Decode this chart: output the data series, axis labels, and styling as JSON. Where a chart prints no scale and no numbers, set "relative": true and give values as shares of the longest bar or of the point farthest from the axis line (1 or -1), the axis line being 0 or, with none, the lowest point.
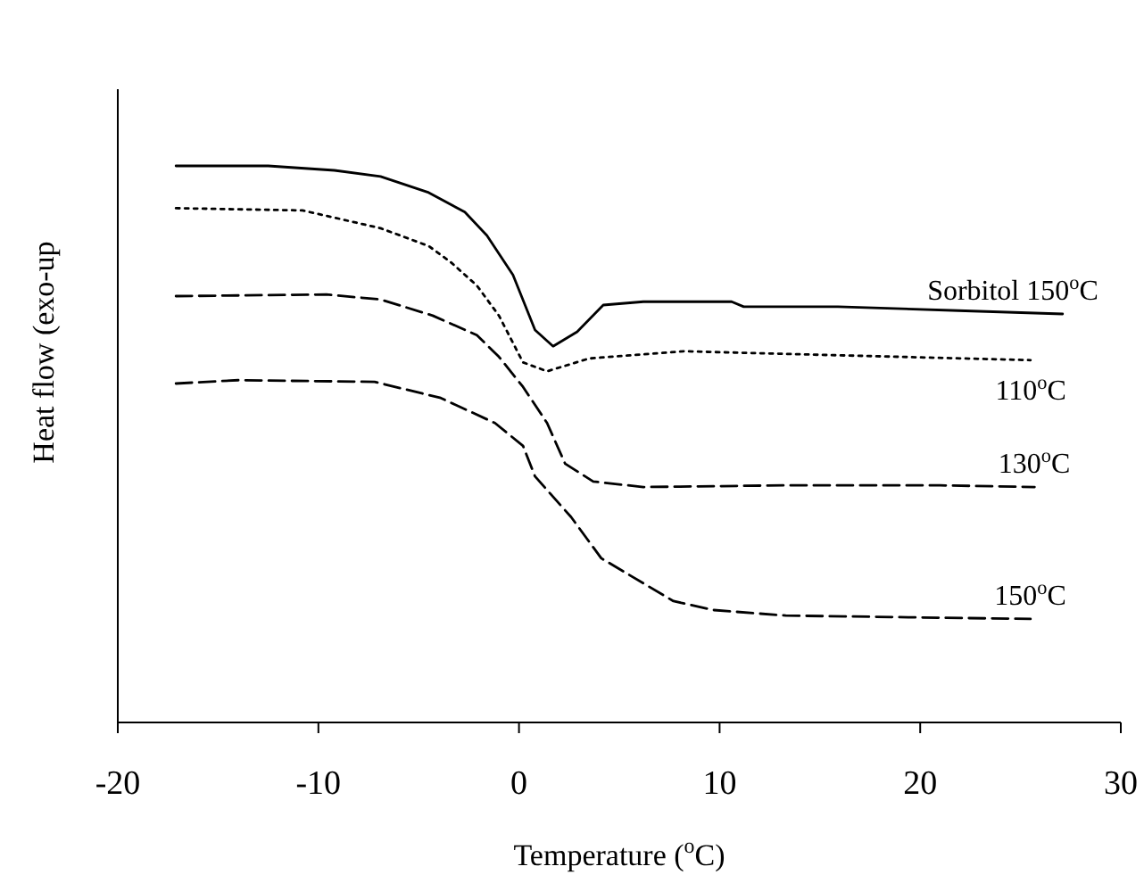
{
  "chart_data": {
    "type": "line",
    "relative": true,
    "xlabel": "Temperature ($^{o}$C)",
    "ylabel": "Heat flow (exo-up",
    "xlim": [
      -20,
      30
    ],
    "xticks": [
      -20,
      -10,
      0,
      10,
      20,
      30
    ],
    "series": [
      {
        "name": "Sorbitol 150$^{o}$C",
        "color": "#000000",
        "line_style": "solid",
        "x": [
          -17.1,
          -12.5,
          -9.2,
          -6.9,
          -4.5,
          -2.7,
          -1.6,
          -0.3,
          0.8,
          1.7,
          2.9,
          4.2,
          6.2,
          10.6,
          11.2,
          15.9,
          21.9,
          27.1
        ],
        "values": [
          1.0,
          1.0,
          0.992,
          0.981,
          0.952,
          0.917,
          0.875,
          0.804,
          0.705,
          0.676,
          0.702,
          0.75,
          0.756,
          0.756,
          0.747,
          0.747,
          0.74,
          0.734
        ]
      },
      {
        "name": "110$^{o}$C",
        "color": "#000000",
        "line_style": "dotted",
        "x": [
          -17.1,
          -10.8,
          -9.2,
          -6.9,
          -4.5,
          -3.4,
          -2.1,
          -1.0,
          0.2,
          1.4,
          3.5,
          8.2,
          15.6,
          25.5
        ],
        "values": [
          0.924,
          0.92,
          0.907,
          0.888,
          0.856,
          0.827,
          0.785,
          0.731,
          0.647,
          0.631,
          0.654,
          0.667,
          0.66,
          0.651
        ]
      },
      {
        "name": "130$^{o}$C",
        "color": "#000000",
        "line_style": "dashed",
        "x": [
          -17.1,
          -9.6,
          -6.9,
          -4.3,
          -2.1,
          -1.0,
          0.2,
          1.4,
          2.3,
          3.7,
          6.2,
          13.3,
          21.0,
          25.7
        ],
        "values": [
          0.766,
          0.769,
          0.76,
          0.731,
          0.696,
          0.657,
          0.603,
          0.538,
          0.465,
          0.433,
          0.423,
          0.426,
          0.426,
          0.423
        ]
      },
      {
        "name": "150$^{o}$C",
        "color": "#000000",
        "line_style": "dashed",
        "x": [
          -17.1,
          -14.0,
          -7.2,
          -3.9,
          -1.2,
          0.2,
          0.8,
          2.6,
          4.1,
          7.7,
          9.7,
          13.3,
          25.5
        ],
        "values": [
          0.609,
          0.615,
          0.612,
          0.583,
          0.538,
          0.497,
          0.442,
          0.369,
          0.295,
          0.218,
          0.202,
          0.192,
          0.186
        ]
      }
    ]
  }
}
